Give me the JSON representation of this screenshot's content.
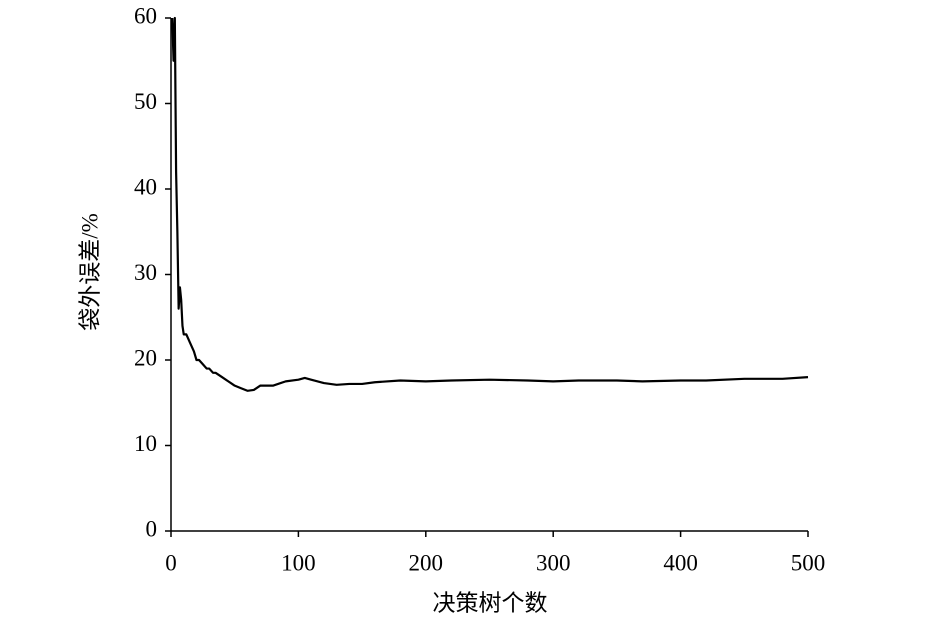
{
  "chart_data": {
    "type": "line",
    "xlabel": "决策树个数",
    "ylabel": "袋外误差/%",
    "x": [
      1,
      2,
      3,
      4,
      5,
      6,
      7,
      8,
      9,
      10,
      12,
      15,
      18,
      20,
      22,
      25,
      28,
      30,
      33,
      35,
      40,
      45,
      50,
      55,
      60,
      65,
      70,
      80,
      90,
      100,
      105,
      110,
      120,
      130,
      140,
      150,
      160,
      180,
      200,
      220,
      250,
      280,
      300,
      320,
      350,
      370,
      400,
      420,
      450,
      480,
      500
    ],
    "values": [
      60,
      55,
      60,
      42,
      35,
      26,
      28.5,
      27,
      24,
      23,
      23,
      22,
      21,
      20,
      20,
      19.5,
      19,
      19,
      18.5,
      18.5,
      18,
      17.5,
      17,
      16.7,
      16.4,
      16.5,
      17,
      17,
      17.5,
      17.7,
      17.9,
      17.7,
      17.3,
      17.1,
      17.2,
      17.2,
      17.4,
      17.6,
      17.5,
      17.6,
      17.7,
      17.6,
      17.5,
      17.6,
      17.6,
      17.5,
      17.6,
      17.6,
      17.8,
      17.8,
      18.0
    ],
    "color": "#000000",
    "xlim": [
      0,
      500
    ],
    "xticks": [
      0,
      100,
      200,
      300,
      400,
      500
    ],
    "ylim": [
      0,
      60
    ],
    "yticks": [
      0,
      10,
      20,
      30,
      40,
      50,
      60
    ]
  }
}
